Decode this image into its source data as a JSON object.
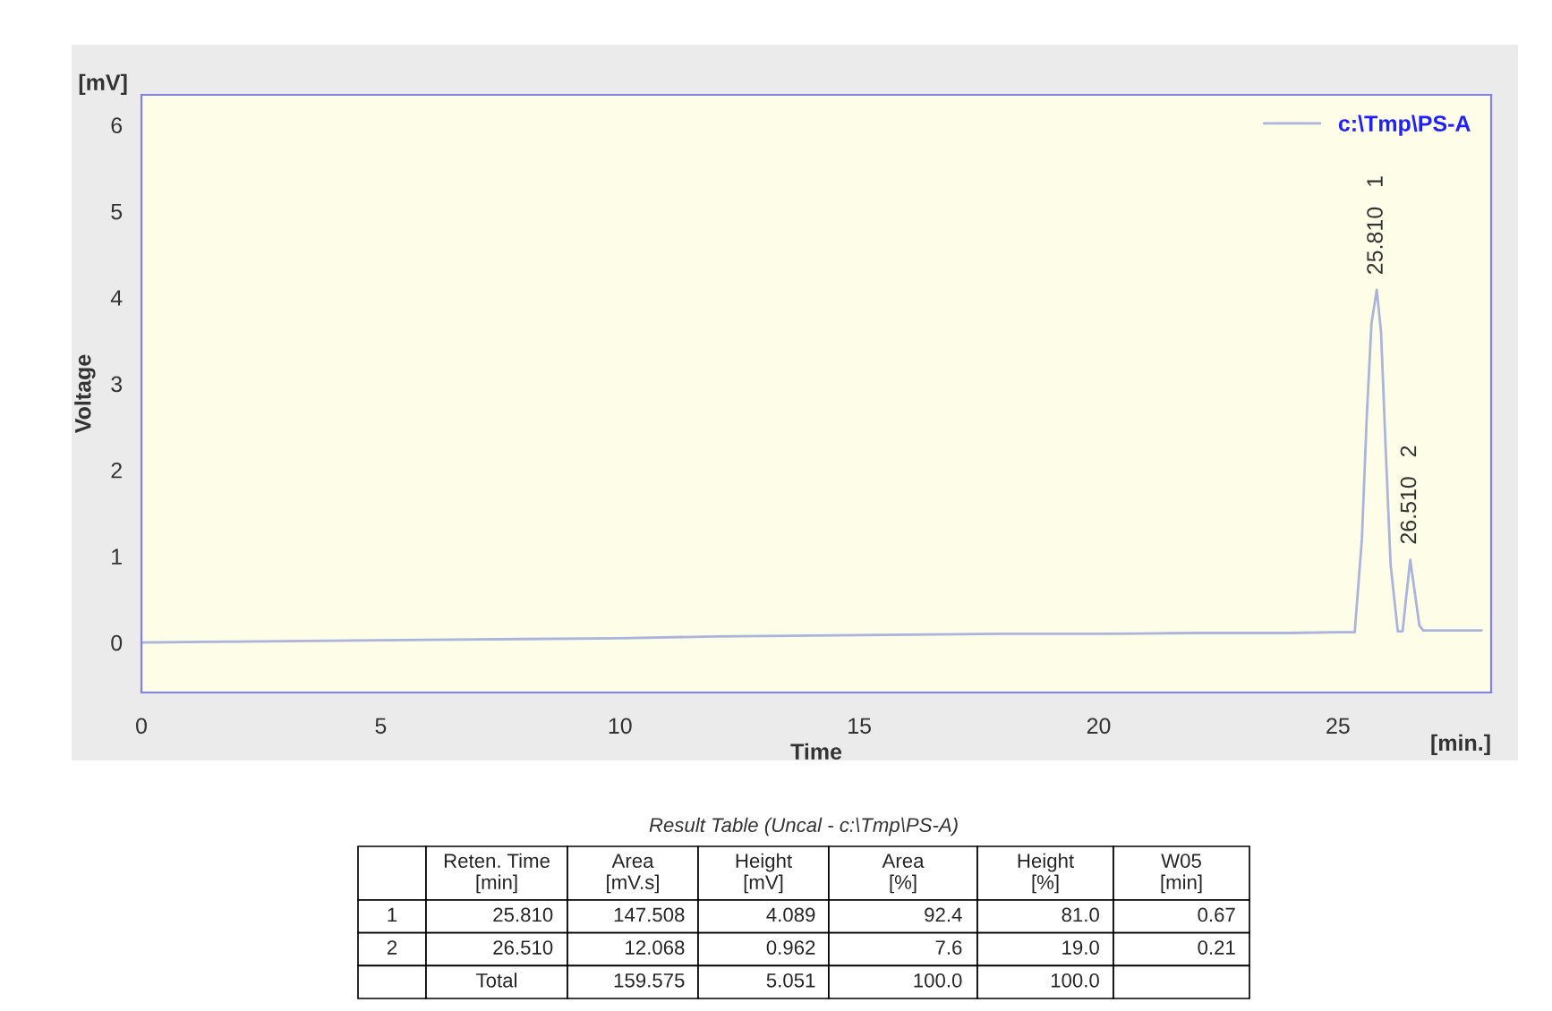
{
  "chart_data": {
    "type": "line",
    "xlabel": "Time",
    "ylabel": "Voltage",
    "x": [
      0,
      2,
      4,
      6,
      8,
      10,
      12,
      14,
      16,
      18,
      20,
      22,
      24,
      25,
      25.35,
      25.5,
      25.6,
      25.7,
      25.81,
      25.9,
      26.0,
      26.1,
      26.25,
      26.35,
      26.42,
      26.51,
      26.6,
      26.7,
      26.78,
      27.2,
      28.0
    ],
    "series": [
      {
        "name": "c:\\Tmp\\PS-A",
        "color": "#aab4dc",
        "values": [
          0,
          0.01,
          0.02,
          0.03,
          0.04,
          0.05,
          0.07,
          0.08,
          0.09,
          0.1,
          0.1,
          0.11,
          0.11,
          0.12,
          0.12,
          1.2,
          2.6,
          3.7,
          4.09,
          3.6,
          2.2,
          0.9,
          0.13,
          0.13,
          0.5,
          0.96,
          0.6,
          0.2,
          0.14,
          0.14,
          0.14
        ]
      }
    ],
    "xlim": [
      0,
      28.2
    ],
    "ylim": [
      -0.58,
      6.35
    ],
    "xticks": [
      0,
      5,
      10,
      15,
      20,
      25
    ],
    "yticks": [
      0,
      1,
      2,
      3,
      4,
      5,
      6
    ],
    "grid": false,
    "legend": "top right",
    "marker": "none",
    "line_style": "solid",
    "annotations": [
      "[mV]",
      "[min.]",
      {
        "text": "25.810   1",
        "x": 25.81,
        "y": 4.089
      },
      {
        "text": "26.510   2",
        "x": 26.51,
        "y": 0.962
      },
      "Result Table (Uncal - c:\\Tmp\\PS-A)",
      null,
      "Reten. Time\n[min]",
      "Area\n[mV.s]",
      "Height\n[mV]",
      "Area\n[%]",
      "Height\n[%]",
      "W05\n[min]",
      "1",
      "25.810",
      "147.508",
      "4.089",
      "92.4",
      "81.0",
      "0.67",
      "2",
      "26.510",
      "12.068",
      "0.962",
      "7.6",
      "19.0",
      "0.21",
      null,
      "Total",
      "159.575",
      "5.051",
      "100.0",
      "100.0",
      null
    ]
  }
}
